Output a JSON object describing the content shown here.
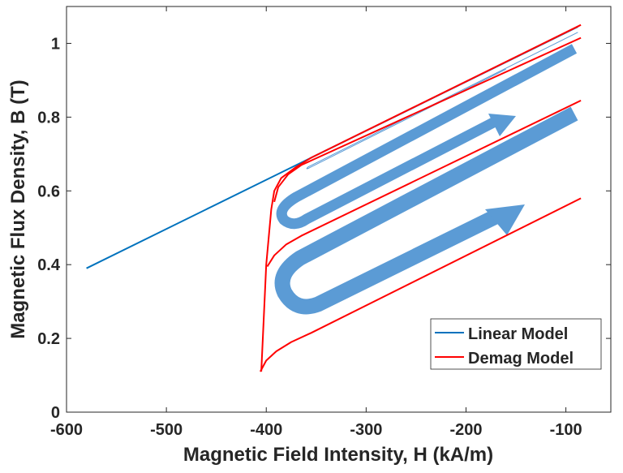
{
  "chart_data": {
    "type": "line",
    "title": "",
    "xlabel": "Magnetic Field Intensity, H (kA/m)",
    "ylabel": "Magnetic Flux Density, B (T)",
    "xlim": [
      -600,
      -55
    ],
    "ylim": [
      0,
      1.1
    ],
    "xticks": [
      -600,
      -500,
      -400,
      -300,
      -200,
      -100
    ],
    "yticks": [
      0,
      0.2,
      0.4,
      0.6,
      0.8,
      1
    ],
    "xtick_labels": [
      "-600",
      "-500",
      "-400",
      "-300",
      "-200",
      "-100"
    ],
    "ytick_labels": [
      "0",
      "0.2",
      "0.4",
      "0.6",
      "0.8",
      "1"
    ],
    "grid": false,
    "legend": {
      "placement": "bottom-right",
      "entries": [
        "Linear Model",
        "Demag Model"
      ]
    },
    "series": [
      {
        "name": "Linear Model",
        "color": "#0072BD",
        "segments": [
          [
            [
              -580,
              0.39
            ],
            [
              -355,
              0.69
            ],
            [
              -88,
              1.045
            ]
          ]
        ]
      },
      {
        "name": "Demag Model",
        "color": "#FF0000",
        "segments": [
          [
            [
              -85,
              1.05
            ],
            [
              -355,
              0.69
            ],
            [
              -370,
              0.665
            ],
            [
              -385,
              0.635
            ],
            [
              -392,
              0.6
            ],
            [
              -395,
              0.55
            ],
            [
              -400,
              0.4
            ],
            [
              -405,
              0.11
            ]
          ],
          [
            [
              -392,
              0.57
            ],
            [
              -388,
              0.61
            ],
            [
              -378,
              0.645
            ],
            [
              -365,
              0.67
            ],
            [
              -85,
              1.015
            ]
          ],
          [
            [
              -399,
              0.395
            ],
            [
              -392,
              0.425
            ],
            [
              -380,
              0.455
            ],
            [
              -365,
              0.478
            ],
            [
              -85,
              0.845
            ]
          ],
          [
            [
              -406,
              0.11
            ],
            [
              -400,
              0.14
            ],
            [
              -390,
              0.165
            ],
            [
              -375,
              0.19
            ],
            [
              -355,
              0.215
            ],
            [
              -85,
              0.58
            ]
          ]
        ]
      }
    ],
    "annotation_color": "#5B9BD5"
  }
}
